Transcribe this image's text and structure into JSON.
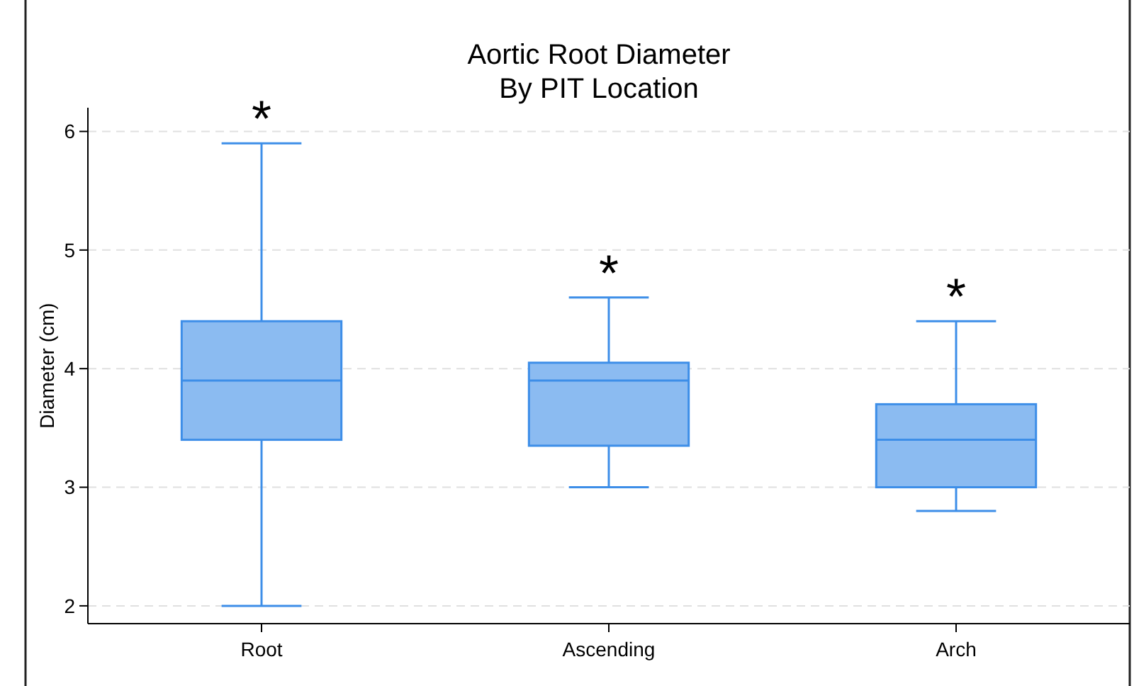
{
  "chart_data": {
    "type": "box",
    "title": "Aortic Root Diameter\nBy PIT Location",
    "ylabel": "Diameter (cm)",
    "categories": [
      "Root",
      "Ascending",
      "Arch"
    ],
    "boxes": [
      {
        "low": 2.0,
        "q1": 3.4,
        "median": 3.9,
        "q3": 4.4,
        "high": 5.9
      },
      {
        "low": 3.0,
        "q1": 3.35,
        "median": 3.9,
        "q3": 4.05,
        "high": 4.6
      },
      {
        "low": 2.8,
        "q1": 3.0,
        "median": 3.4,
        "q3": 3.7,
        "high": 4.4
      }
    ],
    "color": "#3d8ee8",
    "ylim": [
      1.85,
      6.2
    ],
    "yticks": [
      2,
      3,
      4,
      5,
      6
    ],
    "grid": "y",
    "annotations": [
      "*",
      "*",
      "*"
    ]
  }
}
